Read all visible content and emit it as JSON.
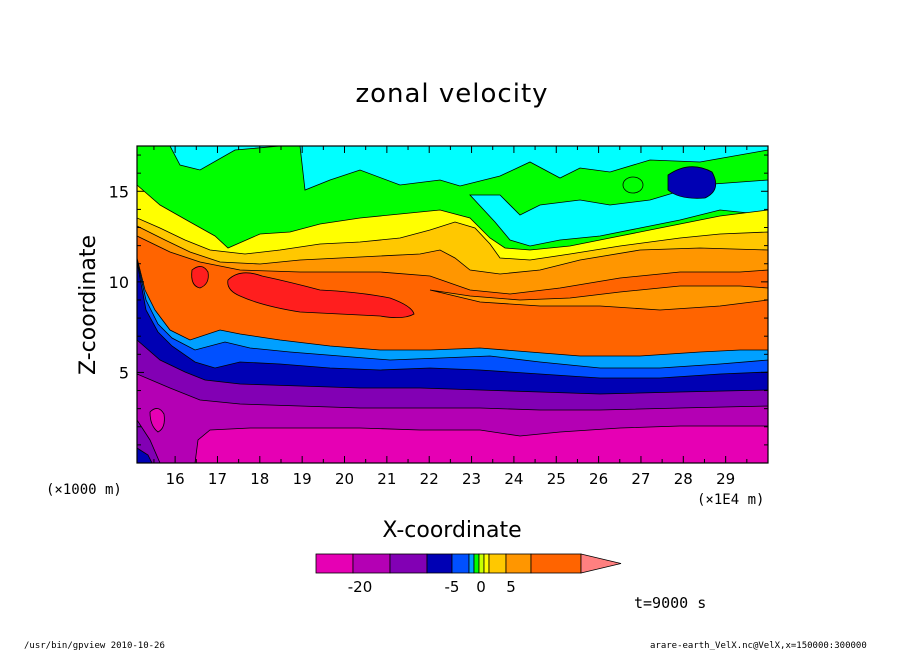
{
  "chart_data": {
    "type": "contour",
    "title": "zonal velocity",
    "xlabel": "X-coordinate",
    "ylabel": "Z-coordinate",
    "x_unit_label": "(×1E4 m)",
    "y_unit_label": "(×1000 m)",
    "x_ticks": [
      "16",
      "17",
      "18",
      "19",
      "20",
      "21",
      "22",
      "23",
      "24",
      "25",
      "26",
      "27",
      "28",
      "29"
    ],
    "y_ticks": [
      "5",
      "10",
      "15"
    ],
    "xlim": [
      15.1,
      30
    ],
    "ylim": [
      0,
      17.5
    ],
    "colorbar": {
      "tick_labels": [
        "-20",
        "-5",
        "0",
        "5"
      ],
      "colors": [
        "#e600b4",
        "#b400b4",
        "#8200b4",
        "#0000b4",
        "#0050ff",
        "#00a0ff",
        "#00ff00",
        "#c8ff00",
        "#ffff00",
        "#ffc800",
        "#ff9600",
        "#ff6400",
        "#ff1e1e",
        "#ff8080"
      ],
      "extend": "max"
    },
    "regions": [
      {
        "name": "surface-negative",
        "color": "#e600b4",
        "z_range": [
          0,
          1.5
        ]
      },
      {
        "name": "low-negative",
        "color": "#b400b4",
        "z_range": [
          1.5,
          3.2
        ]
      },
      {
        "name": "mid-negative",
        "color": "#8200b4",
        "z_range": [
          3.2,
          4.6
        ]
      },
      {
        "name": "deep-blue",
        "color": "#0000b4",
        "z_range": [
          4.6,
          5.6
        ]
      },
      {
        "name": "blue",
        "color": "#0050ff",
        "z_range": [
          5.6,
          6.3
        ]
      },
      {
        "name": "transition",
        "color": "#00a0ff",
        "z_range": [
          6.3,
          6.6
        ]
      },
      {
        "name": "orange-low",
        "color": "#ff6400",
        "z_range": [
          6.6,
          9.5
        ]
      },
      {
        "name": "orange-mid",
        "color": "#ff9600",
        "z_range": [
          9.5,
          11.5
        ]
      },
      {
        "name": "jet-core",
        "color": "#ff1e1e",
        "center": [
          20,
          9.3
        ],
        "max_label": "5"
      },
      {
        "name": "upper-yellow",
        "color": "#ffff00",
        "z_range": [
          11.5,
          13
        ]
      },
      {
        "name": "upper-green",
        "color": "#00ff00",
        "z_range": [
          13,
          15
        ]
      },
      {
        "name": "upper-cyan",
        "color": "#00ffff",
        "z_range": [
          15,
          17.5
        ]
      }
    ]
  },
  "time_label": "t=9000 s",
  "footer_left": "/usr/bin/gpview  2010-10-26",
  "footer_right": "arare-earth_VelX.nc@VelX,x=150000:300000",
  "colors": {
    "cyan": "#00ffff",
    "green": "#00ff00",
    "yellow": "#ffff00",
    "gold": "#ffc800",
    "orange": "#ff9600",
    "dark_orange": "#ff6400",
    "red": "#ff1e1e",
    "blue": "#0050ff",
    "navy": "#0000b4",
    "violet": "#8200b4",
    "purple": "#b400b4",
    "magenta": "#e600b4"
  }
}
